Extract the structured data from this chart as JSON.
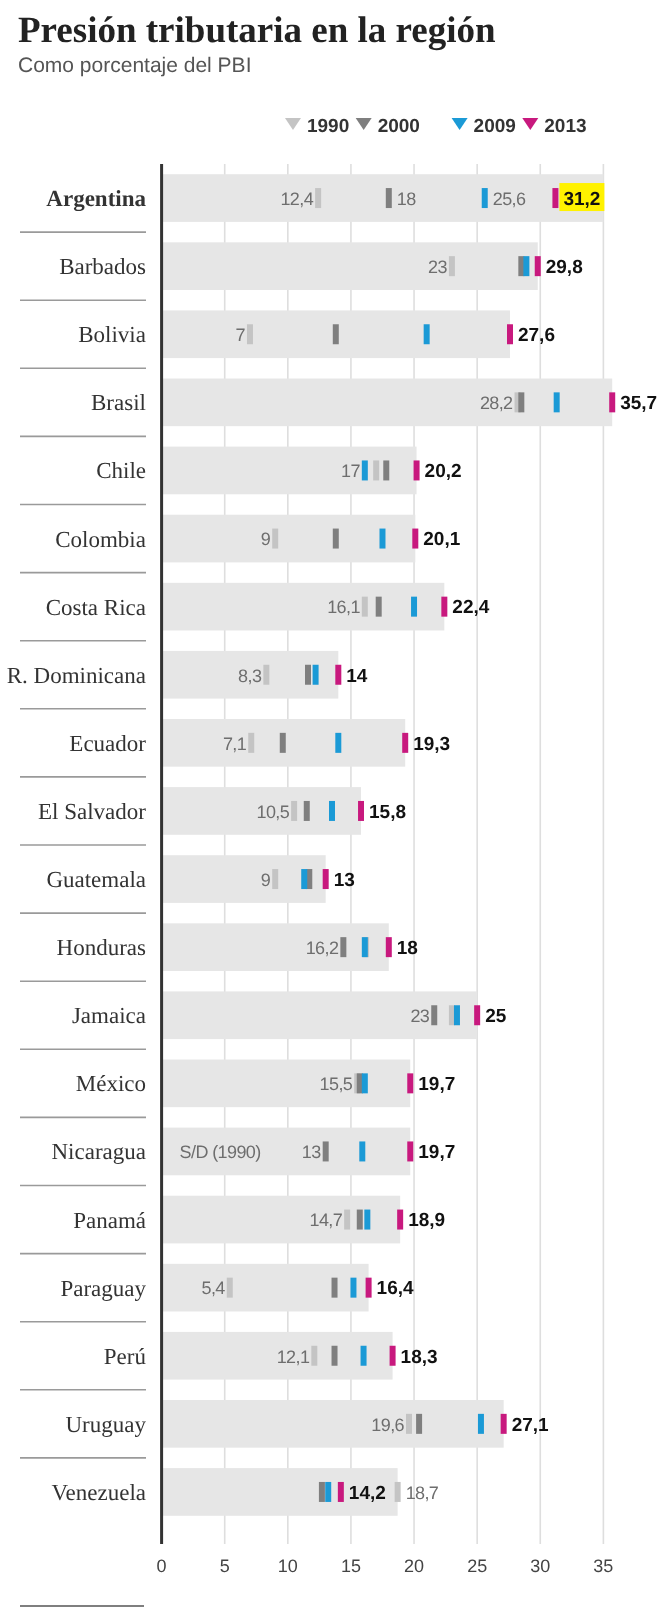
{
  "chart_data": {
    "type": "bar",
    "orientation": "horizontal",
    "title": "Presión tributaria en la región",
    "subtitle": "Como porcentaje del PBI",
    "categories": [
      "Argentina",
      "Barbados",
      "Bolivia",
      "Brasil",
      "Chile",
      "Colombia",
      "Costa Rica",
      "R. Dominicana",
      "Ecuador",
      "El Salvador",
      "Guatemala",
      "Honduras",
      "Jamaica",
      "México",
      "Nicaragua",
      "Panamá",
      "Paraguay",
      "Perú",
      "Uruguay",
      "Venezuela"
    ],
    "series": [
      {
        "type": "bar",
        "color": "#e6e6e6",
        "values": [
          35,
          29.8,
          27.6,
          35.7,
          20.2,
          20.1,
          22.4,
          14,
          19.3,
          15.8,
          13,
          18,
          25,
          19.7,
          19.7,
          18.9,
          16.4,
          18.3,
          27.1,
          18.7
        ]
      },
      {
        "type": "scatter",
        "name": "1990",
        "color": "#c4c4c4",
        "values": [
          12.4,
          23,
          7,
          28.2,
          17,
          9,
          16.1,
          8.3,
          7.1,
          10.5,
          9,
          16.2,
          23,
          15.5,
          null,
          14.7,
          5.4,
          12.1,
          19.6,
          18.7
        ],
        "value_labels": [
          "12,4",
          "23",
          "7",
          "28,2",
          "17",
          "9",
          "16,1",
          "8,3",
          "7,1",
          "10,5",
          "9",
          "16,2",
          "23",
          "15,5",
          "S/D (1990)",
          "14,7",
          "5,4",
          "12,1",
          "19,6",
          "18,7"
        ]
      },
      {
        "type": "scatter",
        "name": "2000",
        "color": "#7f7f7f",
        "values": [
          18,
          28.5,
          13.8,
          28.5,
          17.8,
          13.8,
          17.2,
          11.6,
          9.6,
          11.5,
          11.7,
          14.4,
          21.6,
          15.7,
          13,
          15.7,
          13.7,
          13.7,
          20.4,
          12.7
        ],
        "value_labels": [
          "18",
          null,
          null,
          null,
          null,
          null,
          null,
          null,
          null,
          null,
          null,
          null,
          null,
          null,
          "13",
          null,
          null,
          null,
          null,
          null
        ]
      },
      {
        "type": "scatter",
        "name": "2009",
        "color": "#1b9ad6",
        "values": [
          25.6,
          28.9,
          21.0,
          31.3,
          16.1,
          17.5,
          20.0,
          12.2,
          14.0,
          13.5,
          11.3,
          16.1,
          23.4,
          16.1,
          15.9,
          16.3,
          15.2,
          16.0,
          25.3,
          13.2
        ],
        "value_labels": [
          "25,6",
          null,
          null,
          null,
          null,
          null,
          null,
          null,
          null,
          null,
          null,
          null,
          null,
          null,
          null,
          null,
          null,
          null,
          null,
          null
        ]
      },
      {
        "type": "scatter",
        "name": "2013",
        "color": "#c8197e",
        "values": [
          31.2,
          29.8,
          27.6,
          35.7,
          20.2,
          20.1,
          22.4,
          14,
          19.3,
          15.8,
          13,
          18,
          25,
          19.7,
          19.7,
          18.9,
          16.4,
          18.3,
          27.1,
          14.2
        ],
        "value_labels": [
          "31,2",
          "29,8",
          "27,6",
          "35,7",
          "20,2",
          "20,1",
          "22,4",
          "14",
          "19,3",
          "15,8",
          "13",
          "18",
          "25",
          "19,7",
          "19,7",
          "18,9",
          "16,4",
          "18,3",
          "27,1",
          "14,2"
        ]
      }
    ],
    "xlim": [
      0,
      36
    ],
    "xticks": [
      0,
      5,
      10,
      15,
      20,
      25,
      30,
      35
    ],
    "grid": "x",
    "legend": "top"
  }
}
